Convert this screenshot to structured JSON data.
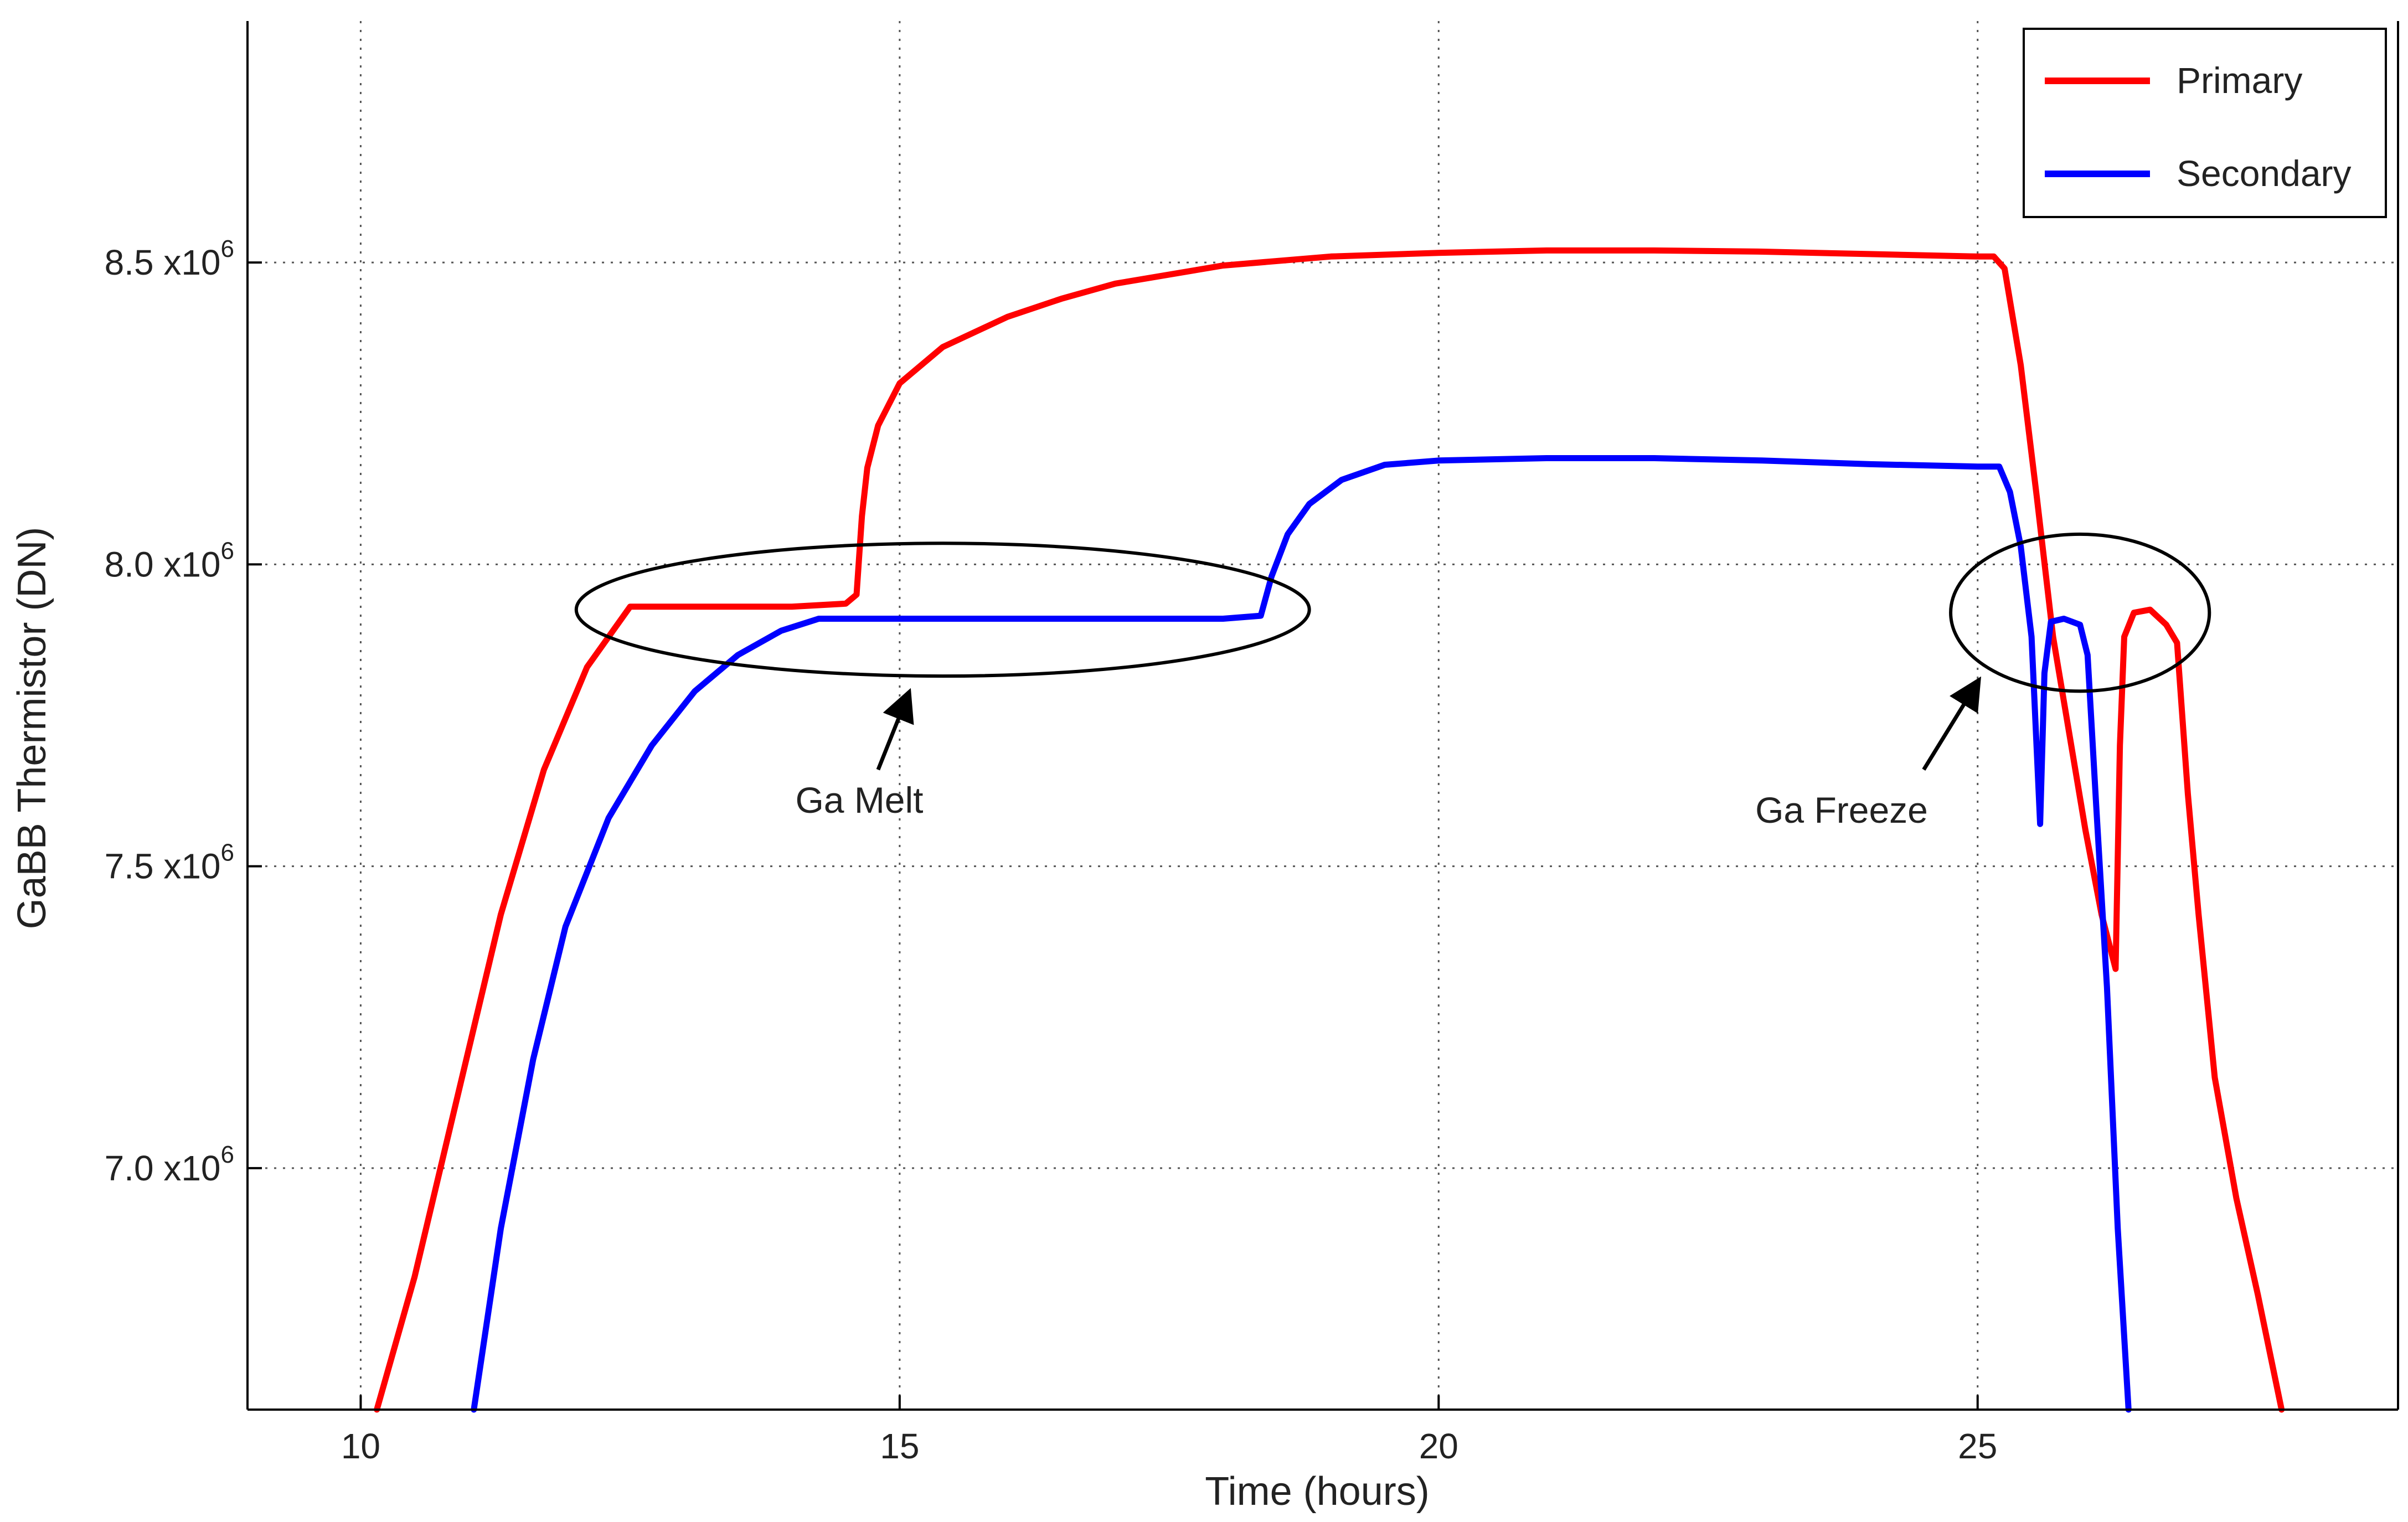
{
  "chart_data": {
    "type": "line",
    "xlabel": "Time (hours)",
    "ylabel": "GaBB Thermistor (DN)",
    "xlim": [
      8.95,
      28.9
    ],
    "ylim": [
      6600000,
      8900000
    ],
    "grid": true,
    "legend_position": "top-right",
    "x_ticks": [
      {
        "value": 10,
        "label": "10"
      },
      {
        "value": 15,
        "label": "15"
      },
      {
        "value": 20,
        "label": "20"
      },
      {
        "value": 25,
        "label": "25"
      }
    ],
    "y_ticks": [
      {
        "value": 7000000,
        "mantissa": "7.0 x10",
        "exp": "6"
      },
      {
        "value": 7500000,
        "mantissa": "7.5 x10",
        "exp": "6"
      },
      {
        "value": 8000000,
        "mantissa": "8.0 x10",
        "exp": "6"
      },
      {
        "value": 8500000,
        "mantissa": "8.5 x10",
        "exp": "6"
      }
    ],
    "series": [
      {
        "name": "Primary",
        "color": "#ff0000",
        "points": [
          [
            10.15,
            6600000
          ],
          [
            10.5,
            6820000
          ],
          [
            10.9,
            7120000
          ],
          [
            11.3,
            7420000
          ],
          [
            11.7,
            7660000
          ],
          [
            12.1,
            7830000
          ],
          [
            12.5,
            7930000
          ],
          [
            13.0,
            7930000
          ],
          [
            13.5,
            7930000
          ],
          [
            14.0,
            7930000
          ],
          [
            14.5,
            7935000
          ],
          [
            14.6,
            7950000
          ],
          [
            14.65,
            8080000
          ],
          [
            14.7,
            8160000
          ],
          [
            14.8,
            8230000
          ],
          [
            15.0,
            8300000
          ],
          [
            15.4,
            8360000
          ],
          [
            16.0,
            8410000
          ],
          [
            16.5,
            8440000
          ],
          [
            17.0,
            8465000
          ],
          [
            18.0,
            8495000
          ],
          [
            19.0,
            8510000
          ],
          [
            20.0,
            8516000
          ],
          [
            21.0,
            8520000
          ],
          [
            22.0,
            8520000
          ],
          [
            23.0,
            8518000
          ],
          [
            24.0,
            8514000
          ],
          [
            25.0,
            8510000
          ],
          [
            25.15,
            8510000
          ],
          [
            25.25,
            8490000
          ],
          [
            25.4,
            8330000
          ],
          [
            25.55,
            8110000
          ],
          [
            25.7,
            7880000
          ],
          [
            25.85,
            7720000
          ],
          [
            26.0,
            7560000
          ],
          [
            26.15,
            7420000
          ],
          [
            26.28,
            7330000
          ],
          [
            26.32,
            7700000
          ],
          [
            26.36,
            7880000
          ],
          [
            26.45,
            7920000
          ],
          [
            26.6,
            7925000
          ],
          [
            26.75,
            7900000
          ],
          [
            26.85,
            7870000
          ],
          [
            26.95,
            7620000
          ],
          [
            27.05,
            7420000
          ],
          [
            27.2,
            7150000
          ],
          [
            27.4,
            6950000
          ],
          [
            27.6,
            6790000
          ],
          [
            27.82,
            6600000
          ]
        ]
      },
      {
        "name": "Secondary",
        "color": "#0000ff",
        "points": [
          [
            11.05,
            6600000
          ],
          [
            11.3,
            6900000
          ],
          [
            11.6,
            7180000
          ],
          [
            11.9,
            7400000
          ],
          [
            12.3,
            7580000
          ],
          [
            12.7,
            7700000
          ],
          [
            13.1,
            7790000
          ],
          [
            13.5,
            7850000
          ],
          [
            13.9,
            7890000
          ],
          [
            14.25,
            7910000
          ],
          [
            15.0,
            7910000
          ],
          [
            16.0,
            7910000
          ],
          [
            17.0,
            7910000
          ],
          [
            18.0,
            7910000
          ],
          [
            18.35,
            7915000
          ],
          [
            18.45,
            7980000
          ],
          [
            18.6,
            8050000
          ],
          [
            18.8,
            8100000
          ],
          [
            19.1,
            8140000
          ],
          [
            19.5,
            8165000
          ],
          [
            20.0,
            8172000
          ],
          [
            21.0,
            8176000
          ],
          [
            22.0,
            8176000
          ],
          [
            23.0,
            8172000
          ],
          [
            24.0,
            8166000
          ],
          [
            25.0,
            8162000
          ],
          [
            25.2,
            8162000
          ],
          [
            25.3,
            8120000
          ],
          [
            25.4,
            8030000
          ],
          [
            25.5,
            7880000
          ],
          [
            25.58,
            7570000
          ],
          [
            25.62,
            7820000
          ],
          [
            25.68,
            7905000
          ],
          [
            25.8,
            7910000
          ],
          [
            25.95,
            7900000
          ],
          [
            26.02,
            7850000
          ],
          [
            26.1,
            7600000
          ],
          [
            26.2,
            7300000
          ],
          [
            26.3,
            6900000
          ],
          [
            26.4,
            6600000
          ]
        ]
      }
    ],
    "annotations": [
      {
        "text": "Ga Melt",
        "x": 14.75,
        "y": 7620000
      },
      {
        "text": "Ga Freeze",
        "x": 23.75,
        "y": 7605000
      }
    ]
  }
}
